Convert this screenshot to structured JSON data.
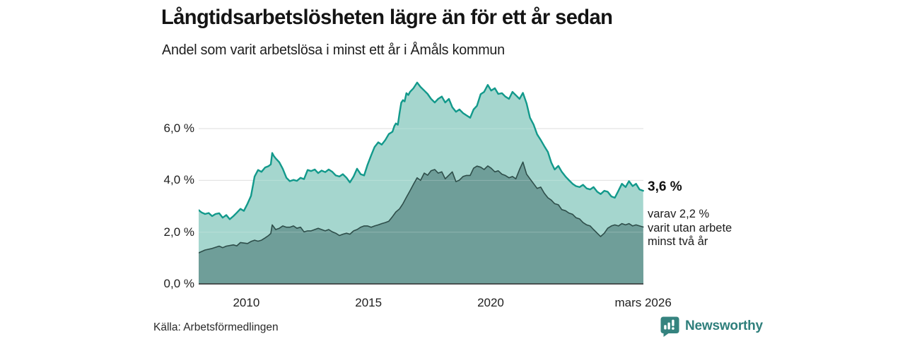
{
  "header": {
    "title": "Långtidsarbetslösheten lägre än för ett år sedan",
    "subtitle": "Andel som varit arbetslösa i minst ett år i Åmåls kommun"
  },
  "chart_data": {
    "type": "area",
    "title": "Långtidsarbetslösheten lägre än för ett år sedan",
    "subtitle": "Andel som varit arbetslösa i minst ett år i Åmåls kommun",
    "x_domain": [
      2008.05,
      2026.25
    ],
    "ylim": [
      0,
      8.3
    ],
    "grid": true,
    "legend": "none",
    "y_axis": {
      "ticks": [
        {
          "label": "0,0 %",
          "value": 0
        },
        {
          "label": "2,0 %",
          "value": 2
        },
        {
          "label": "4,0 %",
          "value": 4
        },
        {
          "label": "6,0 %",
          "value": 6
        }
      ]
    },
    "x_axis": {
      "ticks": [
        {
          "label": "2010",
          "year": 2010
        },
        {
          "label": "2015",
          "year": 2015
        },
        {
          "label": "2020",
          "year": 2020
        },
        {
          "label": "mars 2026",
          "year": 2026.24
        }
      ]
    },
    "series": [
      {
        "name": "arbetslösa minst ett år",
        "fill": "#a5d6ce",
        "line": "#12998b",
        "points": [
          [
            2008.05,
            2.85
          ],
          [
            2008.17,
            2.76
          ],
          [
            2008.31,
            2.7
          ],
          [
            2008.46,
            2.74
          ],
          [
            2008.6,
            2.62
          ],
          [
            2008.74,
            2.7
          ],
          [
            2008.89,
            2.73
          ],
          [
            2009.03,
            2.56
          ],
          [
            2009.18,
            2.66
          ],
          [
            2009.32,
            2.5
          ],
          [
            2009.47,
            2.62
          ],
          [
            2009.61,
            2.75
          ],
          [
            2009.76,
            2.9
          ],
          [
            2009.9,
            2.82
          ],
          [
            2010.05,
            3.1
          ],
          [
            2010.19,
            3.4
          ],
          [
            2010.34,
            4.15
          ],
          [
            2010.48,
            4.4
          ],
          [
            2010.62,
            4.33
          ],
          [
            2010.77,
            4.5
          ],
          [
            2010.91,
            4.55
          ],
          [
            2011.0,
            4.62
          ],
          [
            2011.06,
            5.06
          ],
          [
            2011.12,
            4.95
          ],
          [
            2011.2,
            4.85
          ],
          [
            2011.35,
            4.7
          ],
          [
            2011.49,
            4.45
          ],
          [
            2011.64,
            4.1
          ],
          [
            2011.78,
            3.97
          ],
          [
            2011.93,
            4.02
          ],
          [
            2012.07,
            3.98
          ],
          [
            2012.22,
            4.1
          ],
          [
            2012.36,
            4.05
          ],
          [
            2012.51,
            4.4
          ],
          [
            2012.65,
            4.36
          ],
          [
            2012.8,
            4.42
          ],
          [
            2012.94,
            4.28
          ],
          [
            2013.08,
            4.38
          ],
          [
            2013.23,
            4.32
          ],
          [
            2013.37,
            4.42
          ],
          [
            2013.52,
            4.33
          ],
          [
            2013.66,
            4.19
          ],
          [
            2013.81,
            4.15
          ],
          [
            2013.95,
            4.24
          ],
          [
            2014.1,
            4.1
          ],
          [
            2014.24,
            3.92
          ],
          [
            2014.39,
            4.15
          ],
          [
            2014.53,
            4.45
          ],
          [
            2014.68,
            4.24
          ],
          [
            2014.82,
            4.19
          ],
          [
            2014.96,
            4.6
          ],
          [
            2015.11,
            4.97
          ],
          [
            2015.25,
            5.29
          ],
          [
            2015.4,
            5.47
          ],
          [
            2015.54,
            5.38
          ],
          [
            2015.69,
            5.56
          ],
          [
            2015.83,
            5.79
          ],
          [
            2015.98,
            5.88
          ],
          [
            2016.06,
            6.1
          ],
          [
            2016.12,
            6.2
          ],
          [
            2016.2,
            6.15
          ],
          [
            2016.27,
            6.6
          ],
          [
            2016.34,
            7.0
          ],
          [
            2016.41,
            7.1
          ],
          [
            2016.48,
            7.05
          ],
          [
            2016.55,
            7.37
          ],
          [
            2016.63,
            7.3
          ],
          [
            2016.7,
            7.42
          ],
          [
            2016.84,
            7.56
          ],
          [
            2016.99,
            7.78
          ],
          [
            2017.13,
            7.61
          ],
          [
            2017.28,
            7.47
          ],
          [
            2017.42,
            7.34
          ],
          [
            2017.56,
            7.15
          ],
          [
            2017.71,
            7.01
          ],
          [
            2017.85,
            7.15
          ],
          [
            2018.0,
            7.24
          ],
          [
            2018.14,
            7.01
          ],
          [
            2018.29,
            7.15
          ],
          [
            2018.43,
            6.83
          ],
          [
            2018.58,
            6.65
          ],
          [
            2018.72,
            6.74
          ],
          [
            2018.87,
            6.6
          ],
          [
            2019.01,
            6.51
          ],
          [
            2019.16,
            6.42
          ],
          [
            2019.3,
            6.74
          ],
          [
            2019.44,
            6.88
          ],
          [
            2019.59,
            7.33
          ],
          [
            2019.73,
            7.42
          ],
          [
            2019.88,
            7.69
          ],
          [
            2020.02,
            7.47
          ],
          [
            2020.17,
            7.56
          ],
          [
            2020.31,
            7.34
          ],
          [
            2020.46,
            7.37
          ],
          [
            2020.6,
            7.24
          ],
          [
            2020.75,
            7.15
          ],
          [
            2020.89,
            7.42
          ],
          [
            2021.03,
            7.29
          ],
          [
            2021.18,
            7.15
          ],
          [
            2021.32,
            7.38
          ],
          [
            2021.47,
            6.97
          ],
          [
            2021.61,
            6.42
          ],
          [
            2021.76,
            6.15
          ],
          [
            2021.9,
            5.78
          ],
          [
            2022.05,
            5.56
          ],
          [
            2022.19,
            5.33
          ],
          [
            2022.34,
            5.1
          ],
          [
            2022.48,
            4.69
          ],
          [
            2022.62,
            4.42
          ],
          [
            2022.77,
            4.56
          ],
          [
            2022.91,
            4.33
          ],
          [
            2023.06,
            4.15
          ],
          [
            2023.2,
            4.01
          ],
          [
            2023.35,
            3.87
          ],
          [
            2023.49,
            3.78
          ],
          [
            2023.64,
            3.74
          ],
          [
            2023.78,
            3.83
          ],
          [
            2023.93,
            3.69
          ],
          [
            2024.07,
            3.65
          ],
          [
            2024.21,
            3.74
          ],
          [
            2024.36,
            3.56
          ],
          [
            2024.5,
            3.47
          ],
          [
            2024.65,
            3.6
          ],
          [
            2024.79,
            3.56
          ],
          [
            2024.94,
            3.38
          ],
          [
            2025.08,
            3.33
          ],
          [
            2025.23,
            3.6
          ],
          [
            2025.37,
            3.87
          ],
          [
            2025.52,
            3.74
          ],
          [
            2025.66,
            3.97
          ],
          [
            2025.81,
            3.78
          ],
          [
            2025.95,
            3.87
          ],
          [
            2026.09,
            3.65
          ],
          [
            2026.24,
            3.6
          ]
        ]
      },
      {
        "name": "varav utan arbete minst två år",
        "fill": "#6f9e99",
        "line": "#2e4e4a",
        "points": [
          [
            2008.05,
            1.2
          ],
          [
            2008.31,
            1.31
          ],
          [
            2008.6,
            1.37
          ],
          [
            2008.89,
            1.46
          ],
          [
            2009.03,
            1.4
          ],
          [
            2009.18,
            1.46
          ],
          [
            2009.47,
            1.51
          ],
          [
            2009.61,
            1.47
          ],
          [
            2009.76,
            1.6
          ],
          [
            2010.05,
            1.56
          ],
          [
            2010.19,
            1.64
          ],
          [
            2010.34,
            1.69
          ],
          [
            2010.48,
            1.65
          ],
          [
            2010.62,
            1.69
          ],
          [
            2010.77,
            1.78
          ],
          [
            2010.91,
            1.87
          ],
          [
            2011.0,
            1.95
          ],
          [
            2011.06,
            2.28
          ],
          [
            2011.2,
            2.1
          ],
          [
            2011.35,
            2.15
          ],
          [
            2011.49,
            2.24
          ],
          [
            2011.64,
            2.19
          ],
          [
            2011.78,
            2.19
          ],
          [
            2011.93,
            2.24
          ],
          [
            2012.07,
            2.15
          ],
          [
            2012.22,
            2.19
          ],
          [
            2012.36,
            2.01
          ],
          [
            2012.51,
            2.05
          ],
          [
            2012.65,
            2.05
          ],
          [
            2012.8,
            2.1
          ],
          [
            2012.94,
            2.15
          ],
          [
            2013.08,
            2.1
          ],
          [
            2013.23,
            2.05
          ],
          [
            2013.37,
            2.1
          ],
          [
            2013.52,
            2.01
          ],
          [
            2013.66,
            1.96
          ],
          [
            2013.81,
            1.87
          ],
          [
            2013.95,
            1.92
          ],
          [
            2014.1,
            1.96
          ],
          [
            2014.24,
            1.92
          ],
          [
            2014.39,
            2.05
          ],
          [
            2014.53,
            2.1
          ],
          [
            2014.68,
            2.19
          ],
          [
            2014.82,
            2.24
          ],
          [
            2014.96,
            2.24
          ],
          [
            2015.11,
            2.19
          ],
          [
            2015.25,
            2.24
          ],
          [
            2015.4,
            2.28
          ],
          [
            2015.54,
            2.33
          ],
          [
            2015.69,
            2.37
          ],
          [
            2015.83,
            2.42
          ],
          [
            2015.98,
            2.6
          ],
          [
            2016.12,
            2.78
          ],
          [
            2016.27,
            2.9
          ],
          [
            2016.41,
            3.1
          ],
          [
            2016.55,
            3.35
          ],
          [
            2016.7,
            3.6
          ],
          [
            2016.84,
            3.85
          ],
          [
            2016.99,
            4.1
          ],
          [
            2017.13,
            4.0
          ],
          [
            2017.28,
            4.28
          ],
          [
            2017.42,
            4.2
          ],
          [
            2017.56,
            4.37
          ],
          [
            2017.71,
            4.42
          ],
          [
            2017.85,
            4.28
          ],
          [
            2018.0,
            4.33
          ],
          [
            2018.14,
            4.06
          ],
          [
            2018.29,
            4.2
          ],
          [
            2018.43,
            4.33
          ],
          [
            2018.58,
            3.95
          ],
          [
            2018.72,
            4.01
          ],
          [
            2018.87,
            4.15
          ],
          [
            2019.01,
            4.19
          ],
          [
            2019.16,
            4.19
          ],
          [
            2019.3,
            4.47
          ],
          [
            2019.44,
            4.55
          ],
          [
            2019.59,
            4.51
          ],
          [
            2019.73,
            4.42
          ],
          [
            2019.88,
            4.56
          ],
          [
            2020.02,
            4.47
          ],
          [
            2020.17,
            4.33
          ],
          [
            2020.31,
            4.37
          ],
          [
            2020.46,
            4.24
          ],
          [
            2020.6,
            4.19
          ],
          [
            2020.75,
            4.1
          ],
          [
            2020.89,
            4.15
          ],
          [
            2021.03,
            4.06
          ],
          [
            2021.18,
            4.42
          ],
          [
            2021.32,
            4.71
          ],
          [
            2021.47,
            4.24
          ],
          [
            2021.61,
            4.06
          ],
          [
            2021.76,
            3.87
          ],
          [
            2021.9,
            3.69
          ],
          [
            2022.05,
            3.74
          ],
          [
            2022.19,
            3.51
          ],
          [
            2022.34,
            3.33
          ],
          [
            2022.48,
            3.24
          ],
          [
            2022.62,
            3.1
          ],
          [
            2022.77,
            3.06
          ],
          [
            2022.91,
            2.87
          ],
          [
            2023.06,
            2.83
          ],
          [
            2023.2,
            2.74
          ],
          [
            2023.35,
            2.69
          ],
          [
            2023.49,
            2.56
          ],
          [
            2023.64,
            2.51
          ],
          [
            2023.78,
            2.37
          ],
          [
            2023.93,
            2.28
          ],
          [
            2024.07,
            2.24
          ],
          [
            2024.21,
            2.1
          ],
          [
            2024.36,
            1.96
          ],
          [
            2024.5,
            1.83
          ],
          [
            2024.65,
            1.96
          ],
          [
            2024.79,
            2.15
          ],
          [
            2024.94,
            2.24
          ],
          [
            2025.08,
            2.28
          ],
          [
            2025.23,
            2.24
          ],
          [
            2025.37,
            2.33
          ],
          [
            2025.52,
            2.28
          ],
          [
            2025.66,
            2.33
          ],
          [
            2025.81,
            2.24
          ],
          [
            2025.95,
            2.28
          ],
          [
            2026.09,
            2.24
          ],
          [
            2026.24,
            2.2
          ]
        ]
      }
    ],
    "annotation": {
      "value_label": "3,6 %",
      "detail_lines": [
        "varav 2,2 %",
        "varit utan arbete",
        "minst två år"
      ]
    },
    "colors": {
      "grid": "#d8d8d8",
      "axis_line": "#2d2d2d",
      "brand_teal": "#2f7f7c"
    }
  },
  "footer": {
    "source": "Källa: Arbetsförmedlingen",
    "brand": "Newsworthy"
  }
}
